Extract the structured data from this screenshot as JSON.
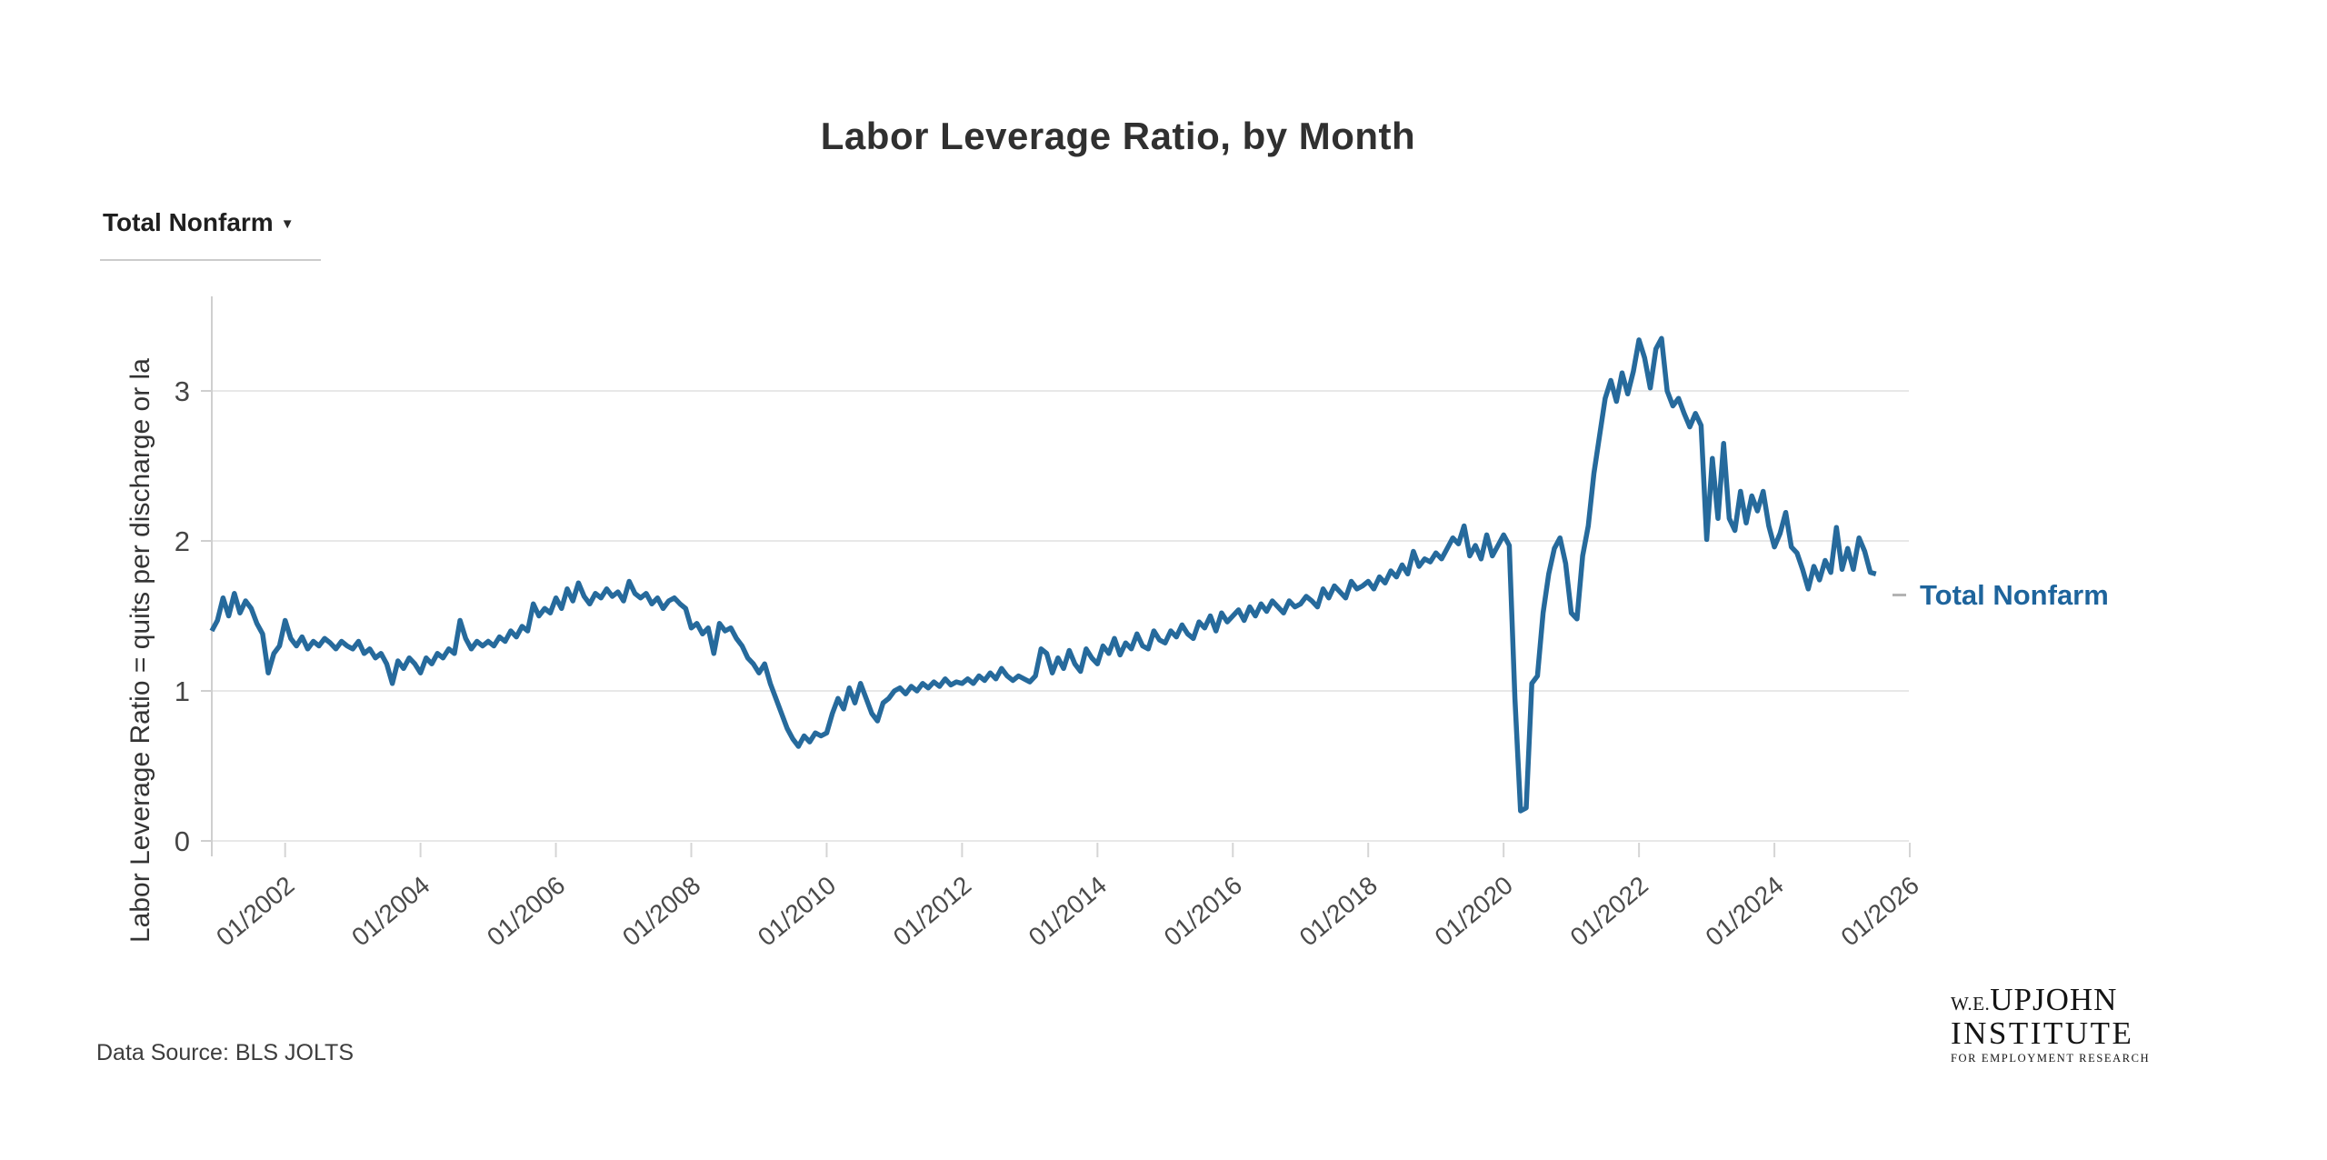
{
  "header": {
    "title": "Labor Leverage Ratio, by Month"
  },
  "controls": {
    "series_selector": {
      "value": "Total Nonfarm",
      "icon": "chevron-down-icon",
      "caret_glyph": "▼"
    }
  },
  "footer": {
    "source": "Data Source: BLS JOLTS"
  },
  "logo": {
    "line1_small": "W.E.",
    "line1_large": "UPJOHN",
    "line2": "INSTITUTE",
    "line3": "FOR EMPLOYMENT RESEARCH"
  },
  "chart_data": {
    "type": "line",
    "title": "Labor Leverage Ratio, by Month",
    "xlabel": "",
    "ylabel": "Labor Leverage Ratio = quits per discharge or la",
    "grid": "horizontal",
    "legend_position": "right-of-line-end",
    "end_label": "Total Nonfarm",
    "y_ticks": [
      0,
      1,
      2,
      3
    ],
    "ylim": [
      0,
      3.6
    ],
    "x_tick_labels": [
      "01/2002",
      "01/2004",
      "01/2006",
      "01/2008",
      "01/2010",
      "01/2012",
      "01/2014",
      "01/2016",
      "01/2018",
      "01/2020",
      "01/2022",
      "01/2024",
      "01/2026"
    ],
    "x_start_month": "2000-12",
    "x_end_month": "2025-07",
    "series": [
      {
        "name": "Total Nonfarm",
        "color": "#266a9c",
        "values": [
          1.4,
          1.47,
          1.62,
          1.5,
          1.65,
          1.52,
          1.6,
          1.55,
          1.45,
          1.38,
          1.12,
          1.25,
          1.3,
          1.47,
          1.35,
          1.3,
          1.36,
          1.28,
          1.33,
          1.3,
          1.35,
          1.32,
          1.28,
          1.33,
          1.3,
          1.28,
          1.33,
          1.25,
          1.28,
          1.22,
          1.25,
          1.18,
          1.05,
          1.2,
          1.15,
          1.22,
          1.18,
          1.12,
          1.22,
          1.18,
          1.25,
          1.22,
          1.28,
          1.25,
          1.47,
          1.35,
          1.28,
          1.33,
          1.3,
          1.33,
          1.3,
          1.36,
          1.33,
          1.4,
          1.36,
          1.43,
          1.4,
          1.58,
          1.5,
          1.55,
          1.52,
          1.62,
          1.55,
          1.68,
          1.6,
          1.72,
          1.63,
          1.58,
          1.65,
          1.62,
          1.68,
          1.63,
          1.66,
          1.6,
          1.73,
          1.65,
          1.62,
          1.65,
          1.58,
          1.62,
          1.55,
          1.6,
          1.62,
          1.58,
          1.55,
          1.42,
          1.45,
          1.38,
          1.42,
          1.25,
          1.45,
          1.4,
          1.42,
          1.35,
          1.3,
          1.22,
          1.18,
          1.12,
          1.18,
          1.05,
          0.95,
          0.85,
          0.75,
          0.68,
          0.63,
          0.7,
          0.66,
          0.72,
          0.7,
          0.72,
          0.85,
          0.95,
          0.88,
          1.02,
          0.92,
          1.05,
          0.95,
          0.85,
          0.8,
          0.92,
          0.95,
          1.0,
          1.02,
          0.98,
          1.03,
          1.0,
          1.05,
          1.02,
          1.06,
          1.03,
          1.08,
          1.04,
          1.06,
          1.05,
          1.08,
          1.05,
          1.1,
          1.07,
          1.12,
          1.08,
          1.15,
          1.1,
          1.07,
          1.1,
          1.08,
          1.06,
          1.1,
          1.28,
          1.25,
          1.12,
          1.22,
          1.15,
          1.27,
          1.18,
          1.13,
          1.28,
          1.22,
          1.18,
          1.3,
          1.25,
          1.35,
          1.24,
          1.32,
          1.28,
          1.38,
          1.3,
          1.28,
          1.4,
          1.34,
          1.32,
          1.4,
          1.36,
          1.44,
          1.38,
          1.35,
          1.46,
          1.42,
          1.5,
          1.4,
          1.52,
          1.46,
          1.5,
          1.54,
          1.47,
          1.56,
          1.5,
          1.58,
          1.53,
          1.6,
          1.56,
          1.52,
          1.6,
          1.56,
          1.58,
          1.63,
          1.6,
          1.56,
          1.68,
          1.62,
          1.7,
          1.66,
          1.62,
          1.73,
          1.68,
          1.7,
          1.73,
          1.68,
          1.76,
          1.72,
          1.8,
          1.76,
          1.84,
          1.78,
          1.93,
          1.83,
          1.88,
          1.86,
          1.92,
          1.88,
          1.95,
          2.02,
          1.98,
          2.1,
          1.9,
          1.97,
          1.88,
          2.04,
          1.9,
          1.97,
          2.04,
          1.97,
          0.95,
          0.2,
          0.22,
          1.05,
          1.1,
          1.52,
          1.78,
          1.95,
          2.02,
          1.85,
          1.52,
          1.48,
          1.9,
          2.1,
          2.45,
          2.7,
          2.95,
          3.07,
          2.93,
          3.12,
          2.98,
          3.13,
          3.34,
          3.22,
          3.02,
          3.28,
          3.35,
          3.0,
          2.9,
          2.95,
          2.85,
          2.76,
          2.85,
          2.77,
          2.01,
          2.55,
          2.15,
          2.65,
          2.15,
          2.07,
          2.33,
          2.12,
          2.3,
          2.2,
          2.33,
          2.1,
          1.96,
          2.05,
          2.19,
          1.96,
          1.92,
          1.81,
          1.68,
          1.83,
          1.74,
          1.87,
          1.79,
          2.09,
          1.81,
          1.95,
          1.81,
          2.02,
          1.93,
          1.79,
          1.78
        ]
      }
    ]
  }
}
